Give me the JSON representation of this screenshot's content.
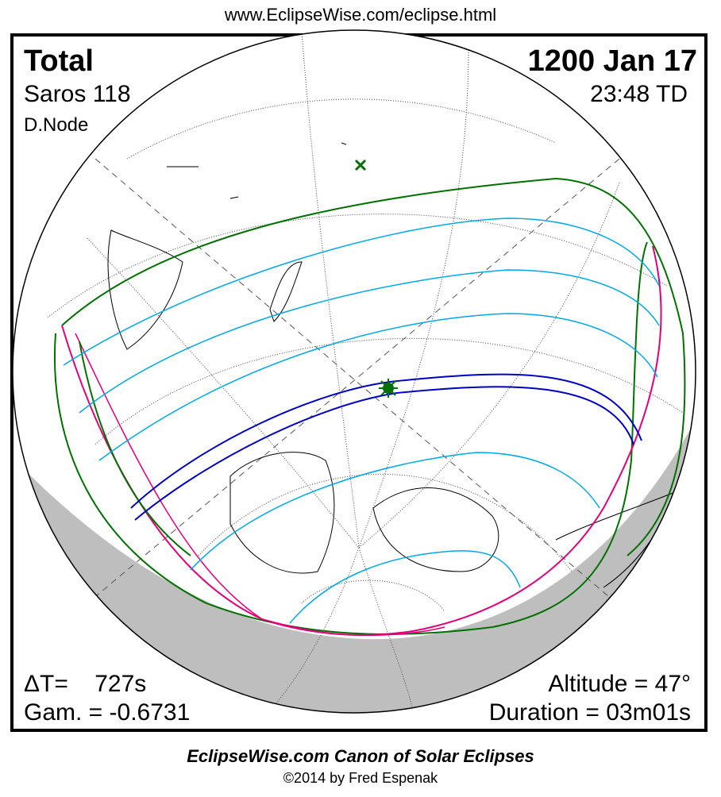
{
  "header_url": "www.EclipseWise.com/eclipse.html",
  "eclipse": {
    "type": "Total",
    "date": "1200 Jan 17",
    "saros": "Saros 118",
    "time": "23:48 TD",
    "node": "D.Node",
    "delta_t": "ΔT=    727s",
    "gamma": "Gam. = -0.6731",
    "altitude": "Altitude = 47°",
    "duration": "Duration = 03m01s"
  },
  "footer": {
    "title": "EclipseWise.com Canon of Solar Eclipses",
    "copyright": "©2014 by Fred Espenak"
  },
  "colors": {
    "central_path": "#0000c0",
    "penumbral_limits": "#007000",
    "partial_lines": "#00a8e8",
    "rise_set_curves": "#e0007a",
    "night_shade": "#bebebe",
    "greatest_eclipse_marker": "#007000"
  },
  "icons": {
    "greatest_eclipse": "star-marker",
    "subsolar_point": "x-marker"
  }
}
